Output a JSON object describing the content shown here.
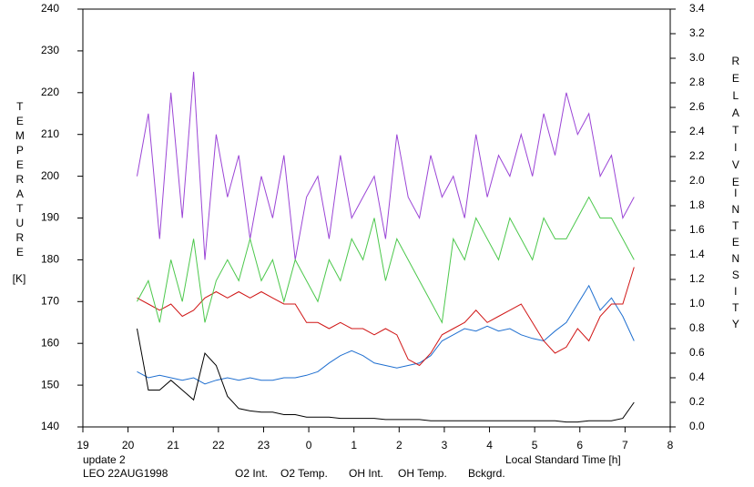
{
  "chart_data": {
    "type": "line",
    "y_label": "TEMPERATURE",
    "y_unit": "[K]",
    "y2_label_1": "RELATIVE",
    "y2_label_2": "INTENSITY",
    "x_label": "Local Standard Time [h]",
    "note": "update 2",
    "note_color": "#33cc33",
    "station": "LEO 22AUG1998",
    "xlim": [
      19,
      32
    ],
    "xticks": [
      19,
      20,
      21,
      22,
      23,
      {
        "value": 24,
        "label": "0"
      },
      {
        "value": 25,
        "label": "1"
      },
      {
        "value": 26,
        "label": "2"
      },
      {
        "value": 27,
        "label": "3"
      },
      {
        "value": 28,
        "label": "4"
      },
      {
        "value": 29,
        "label": "5"
      },
      {
        "value": 30,
        "label": "6"
      },
      {
        "value": 31,
        "label": "7"
      },
      {
        "value": 32,
        "label": "8"
      }
    ],
    "ylim": [
      140,
      240
    ],
    "yticks": [
      140,
      150,
      160,
      170,
      180,
      190,
      200,
      210,
      220,
      230,
      240
    ],
    "y2lim": [
      0,
      3.4
    ],
    "y2ticks": [
      {
        "value": 0,
        "label": "0.0"
      },
      0.2,
      0.4,
      0.6,
      0.8,
      {
        "value": 1,
        "label": "1.0"
      },
      1.2,
      1.4,
      1.6,
      1.8,
      {
        "value": 2,
        "label": "2.0"
      },
      2.2,
      2.4,
      2.6,
      2.8,
      {
        "value": 3,
        "label": "3.0"
      },
      3.2,
      3.4
    ],
    "x": [
      20.2,
      20.45,
      20.7,
      20.95,
      21.2,
      21.45,
      21.7,
      21.95,
      22.2,
      22.45,
      22.7,
      22.95,
      23.2,
      23.45,
      23.7,
      23.95,
      24.2,
      24.45,
      24.7,
      24.95,
      25.2,
      25.45,
      25.7,
      25.95,
      26.2,
      26.45,
      26.7,
      26.95,
      27.2,
      27.45,
      27.7,
      27.95,
      28.2,
      28.45,
      28.7,
      28.95,
      29.2,
      29.45,
      29.7,
      29.95,
      30.2,
      30.45,
      30.7,
      30.95,
      31.2
    ],
    "series": [
      {
        "name": "O2 Int.",
        "color": "#1f6fd0",
        "axis": "y2",
        "values": [
          0.45,
          0.4,
          0.42,
          0.4,
          0.38,
          0.4,
          0.35,
          0.38,
          0.4,
          0.38,
          0.4,
          0.38,
          0.38,
          0.4,
          0.4,
          0.42,
          0.45,
          0.52,
          0.58,
          0.62,
          0.58,
          0.52,
          0.5,
          0.48,
          0.5,
          0.52,
          0.58,
          0.7,
          0.75,
          0.8,
          0.78,
          0.82,
          0.78,
          0.8,
          0.75,
          0.72,
          0.7,
          0.78,
          0.85,
          1.0,
          1.15,
          0.95,
          1.05,
          0.9,
          0.7
        ]
      },
      {
        "name": "O2 Temp.",
        "color": "#9b45d6",
        "values": [
          200,
          215,
          185,
          220,
          190,
          225,
          180,
          210,
          195,
          205,
          185,
          200,
          190,
          205,
          180,
          195,
          200,
          185,
          205,
          190,
          195,
          200,
          185,
          210,
          195,
          190,
          205,
          195,
          200,
          190,
          210,
          195,
          205,
          200,
          210,
          200,
          215,
          205,
          220,
          210,
          215,
          200,
          205,
          190,
          195
        ]
      },
      {
        "name": "OH Int.",
        "color": "#d01515",
        "axis": "y2",
        "values": [
          1.05,
          1.0,
          0.95,
          1.0,
          0.9,
          0.95,
          1.05,
          1.1,
          1.05,
          1.1,
          1.05,
          1.1,
          1.05,
          1.0,
          1.0,
          0.85,
          0.85,
          0.8,
          0.85,
          0.8,
          0.8,
          0.75,
          0.8,
          0.75,
          0.55,
          0.5,
          0.6,
          0.75,
          0.8,
          0.85,
          0.95,
          0.85,
          0.9,
          0.95,
          1.0,
          0.85,
          0.7,
          0.6,
          0.65,
          0.8,
          0.7,
          0.9,
          1.0,
          1.0,
          1.3
        ]
      },
      {
        "name": "OH Temp.",
        "color": "#4cc84c",
        "values": [
          170,
          175,
          165,
          180,
          170,
          185,
          165,
          175,
          180,
          175,
          185,
          175,
          180,
          170,
          180,
          175,
          170,
          180,
          175,
          185,
          180,
          190,
          175,
          185,
          180,
          175,
          170,
          165,
          185,
          180,
          190,
          185,
          180,
          190,
          185,
          180,
          190,
          185,
          185,
          190,
          195,
          190,
          190,
          185,
          180
        ]
      },
      {
        "name": "Bckgrd.",
        "color": "#000000",
        "axis": "y2",
        "values": [
          0.8,
          0.3,
          0.3,
          0.38,
          0.3,
          0.22,
          0.6,
          0.5,
          0.25,
          0.15,
          0.13,
          0.12,
          0.12,
          0.1,
          0.1,
          0.08,
          0.08,
          0.08,
          0.07,
          0.07,
          0.07,
          0.07,
          0.06,
          0.06,
          0.06,
          0.06,
          0.05,
          0.05,
          0.05,
          0.05,
          0.05,
          0.05,
          0.05,
          0.05,
          0.05,
          0.05,
          0.05,
          0.05,
          0.04,
          0.04,
          0.05,
          0.05,
          0.05,
          0.07,
          0.2
        ]
      }
    ]
  }
}
